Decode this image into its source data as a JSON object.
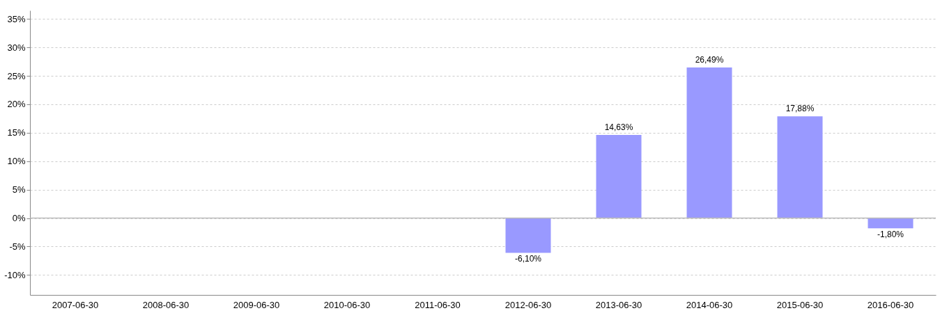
{
  "chart_data": {
    "type": "bar",
    "categories": [
      "2007-06-30",
      "2008-06-30",
      "2009-06-30",
      "2010-06-30",
      "2011-06-30",
      "2012-06-30",
      "2013-06-30",
      "2014-06-30",
      "2015-06-30",
      "2016-06-30"
    ],
    "values": [
      null,
      null,
      null,
      null,
      null,
      -6.1,
      14.63,
      26.49,
      17.88,
      -1.8
    ],
    "value_labels": [
      null,
      null,
      null,
      null,
      null,
      "-6,10%",
      "14,63%",
      "26,49%",
      "17,88%",
      "-1,80%"
    ],
    "color": "#9999ff",
    "ylim": [
      -13.5,
      36.5
    ],
    "yticks": [
      {
        "value": -10,
        "label": "-10%"
      },
      {
        "value": -5,
        "label": "-5%"
      },
      {
        "value": 0,
        "label": "0%"
      },
      {
        "value": 5,
        "label": "5%"
      },
      {
        "value": 10,
        "label": "10%"
      },
      {
        "value": 15,
        "label": "15%"
      },
      {
        "value": 20,
        "label": "20%"
      },
      {
        "value": 25,
        "label": "25%"
      },
      {
        "value": 30,
        "label": "30%"
      },
      {
        "value": 35,
        "label": "35%"
      }
    ],
    "grid": "y",
    "ref_lines": [
      {
        "axis": "y",
        "value": 0,
        "color": "#bbbbbb"
      }
    ]
  }
}
